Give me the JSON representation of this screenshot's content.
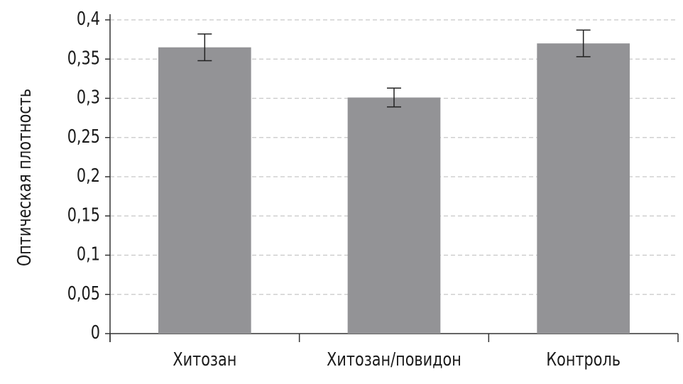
{
  "chart_data": {
    "type": "bar",
    "y_label": "Оптическая плотность",
    "categories": [
      "Хитозан",
      "Хитозан/повидон",
      "Контроль"
    ],
    "values": [
      0.365,
      0.301,
      0.37
    ],
    "errors": [
      0.017,
      0.012,
      0.017
    ],
    "color": "#939396",
    "ylim": [
      0,
      0.4
    ],
    "yticks": [
      0,
      {
        "value": 0.05,
        "label": "0,05"
      },
      {
        "value": 0.1,
        "label": "0,1"
      },
      {
        "value": 0.15,
        "label": "0,15"
      },
      {
        "value": 0.2,
        "label": "0,2"
      },
      {
        "value": 0.25,
        "label": "0,25"
      },
      {
        "value": 0.3,
        "label": "0,3"
      },
      {
        "value": 0.35,
        "label": "0,35"
      },
      {
        "value": 0.4,
        "label": "0,4"
      }
    ],
    "grid": true
  }
}
